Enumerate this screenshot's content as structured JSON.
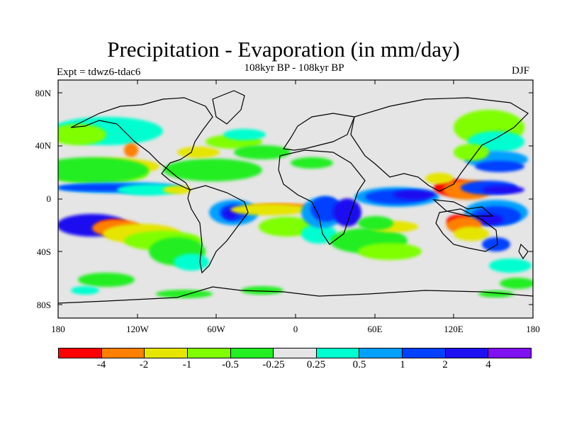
{
  "title": "Precipitation - Evaporation (in mm/day)",
  "subtitle": "108kyr BP - 108kyr BP",
  "experiment": "Expt = tdwz6-tdac6",
  "season": "DJF",
  "lat_ticks": [
    "80N",
    "40N",
    "0",
    "40S",
    "80S"
  ],
  "lon_ticks": [
    "180",
    "120W",
    "60W",
    "0",
    "60E",
    "120E",
    "180"
  ],
  "colorbar": {
    "colors": [
      "#ff0000",
      "#ff7f00",
      "#e5e500",
      "#7fff00",
      "#22ee22",
      "#e5e5e5",
      "#00ffd0",
      "#00a0ff",
      "#0040ff",
      "#1e10f0",
      "#7f10f0"
    ],
    "labels": [
      "-4",
      "-2",
      "-1",
      "-0.5",
      "-0.25",
      "0.25",
      "0.5",
      "1",
      "2",
      "4"
    ]
  },
  "map_colors": {
    "neutral": "#e5e5e5",
    "red": "#ff0000",
    "orange": "#ff7f00",
    "yellow": "#e5e500",
    "lime": "#7fff00",
    "green": "#22ee22",
    "cyan": "#00ffd0",
    "lightblue": "#00a0ff",
    "blue": "#0040ff",
    "darkblue": "#1e10f0"
  }
}
